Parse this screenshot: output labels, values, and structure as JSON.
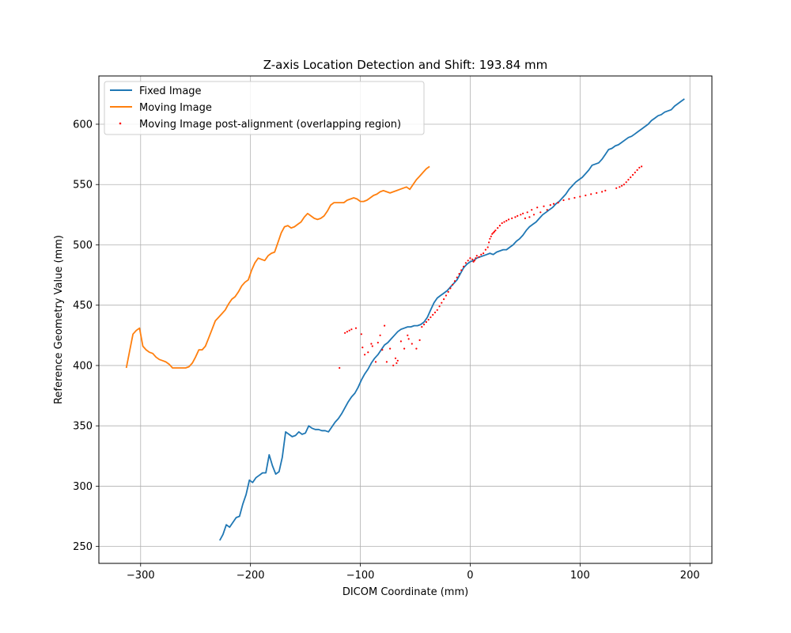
{
  "chart_data": {
    "type": "line",
    "title": "Z-axis Location Detection and Shift: 193.84 mm",
    "xlabel": "DICOM Coordinate (mm)",
    "ylabel": "Reference Geometry Value (mm)",
    "xlim": [
      -338,
      220
    ],
    "ylim": [
      236,
      640
    ],
    "xticks": [
      -300,
      -200,
      -100,
      0,
      100,
      200
    ],
    "yticks": [
      250,
      300,
      350,
      400,
      450,
      500,
      550,
      600
    ],
    "xtick_labels": [
      "−300",
      "−200",
      "−100",
      "0",
      "100",
      "200"
    ],
    "ytick_labels": [
      "250",
      "300",
      "350",
      "400",
      "450",
      "500",
      "550",
      "600"
    ],
    "grid": true,
    "legend_position": "top-left",
    "series": [
      {
        "name": "Fixed Image",
        "type": "line",
        "color": "#1f77b4",
        "x": [
          -228,
          -225,
          -222,
          -219,
          -216,
          -213,
          -210,
          -207,
          -204,
          -201,
          -198,
          -195,
          -192,
          -189,
          -186,
          -183,
          -180,
          -177,
          -174,
          -171,
          -168,
          -165,
          -162,
          -159,
          -156,
          -153,
          -150,
          -147,
          -144,
          -141,
          -138,
          -135,
          -132,
          -129,
          -126,
          -123,
          -120,
          -117,
          -114,
          -111,
          -108,
          -105,
          -102,
          -99,
          -96,
          -93,
          -90,
          -87,
          -84,
          -81,
          -78,
          -75,
          -72,
          -69,
          -66,
          -63,
          -60,
          -57,
          -54,
          -51,
          -48,
          -45,
          -42,
          -39,
          -36,
          -33,
          -30,
          -27,
          -24,
          -21,
          -18,
          -15,
          -12,
          -9,
          -6,
          -3,
          0,
          3,
          6,
          9,
          12,
          15,
          18,
          21,
          24,
          27,
          30,
          33,
          36,
          39,
          42,
          45,
          48,
          51,
          54,
          57,
          60,
          63,
          66,
          69,
          72,
          75,
          78,
          81,
          84,
          87,
          90,
          93,
          96,
          99,
          102,
          105,
          108,
          111,
          114,
          117,
          120,
          123,
          126,
          129,
          132,
          135,
          138,
          141,
          144,
          147,
          150,
          153,
          156,
          159,
          162,
          165,
          168,
          171,
          174,
          177,
          180,
          183,
          186,
          189,
          192,
          195
        ],
        "y": [
          255,
          260,
          268,
          266,
          270,
          274,
          275,
          285,
          293,
          305,
          303,
          307,
          309,
          311,
          311,
          326,
          317,
          310,
          312,
          324,
          345,
          343,
          341,
          342,
          345,
          343,
          344,
          350,
          348,
          347,
          347,
          346,
          346,
          345,
          349,
          353,
          356,
          360,
          365,
          370,
          374,
          377,
          382,
          388,
          393,
          397,
          402,
          406,
          409,
          413,
          417,
          419,
          422,
          425,
          428,
          430,
          431,
          432,
          432,
          433,
          433,
          434,
          436,
          440,
          446,
          452,
          456,
          458,
          460,
          462,
          465,
          468,
          471,
          476,
          481,
          484,
          486,
          487,
          489,
          490,
          491,
          492,
          493,
          492,
          494,
          495,
          496,
          496,
          498,
          500,
          503,
          505,
          508,
          512,
          515,
          517,
          519,
          522,
          525,
          527,
          529,
          531,
          534,
          536,
          539,
          542,
          546,
          549,
          552,
          554,
          556,
          559,
          562,
          566,
          567,
          568,
          571,
          575,
          579,
          580,
          582,
          583,
          585,
          587,
          589,
          590,
          592,
          594,
          596,
          598,
          600,
          603,
          605,
          607,
          608,
          610,
          611,
          612,
          615,
          617,
          619,
          621
        ]
      },
      {
        "name": "Moving Image",
        "type": "line",
        "color": "#ff7f0e",
        "x": [
          -313,
          -310,
          -307,
          -304,
          -301,
          -298,
          -295,
          -292,
          -289,
          -286,
          -283,
          -280,
          -277,
          -274,
          -271,
          -268,
          -265,
          -262,
          -259,
          -256,
          -253,
          -250,
          -247,
          -244,
          -241,
          -238,
          -235,
          -232,
          -229,
          -226,
          -223,
          -220,
          -217,
          -214,
          -211,
          -208,
          -205,
          -202,
          -199,
          -196,
          -193,
          -190,
          -187,
          -184,
          -181,
          -178,
          -175,
          -172,
          -169,
          -166,
          -163,
          -160,
          -157,
          -154,
          -151,
          -148,
          -145,
          -142,
          -139,
          -136,
          -133,
          -130,
          -127,
          -124,
          -121,
          -118,
          -115,
          -112,
          -109,
          -106,
          -103,
          -100,
          -97,
          -94,
          -91,
          -88,
          -85,
          -82,
          -79,
          -76,
          -73,
          -70,
          -67,
          -64,
          -61,
          -58,
          -55,
          -52,
          -49,
          -46,
          -43,
          -40,
          -37
        ],
        "y": [
          398,
          412,
          426,
          429,
          431,
          416,
          413,
          411,
          410,
          407,
          405,
          404,
          403,
          401,
          398,
          398,
          398,
          398,
          398,
          399,
          402,
          407,
          413,
          413,
          416,
          423,
          430,
          437,
          440,
          443,
          446,
          451,
          455,
          457,
          461,
          466,
          469,
          471,
          479,
          485,
          489,
          488,
          487,
          491,
          493,
          494,
          502,
          510,
          515,
          516,
          514,
          515,
          517,
          519,
          523,
          526,
          524,
          522,
          521,
          522,
          524,
          528,
          533,
          535,
          535,
          535,
          535,
          537,
          538,
          539,
          538,
          536,
          536,
          537,
          539,
          541,
          542,
          544,
          545,
          544,
          543,
          544,
          545,
          546,
          547,
          548,
          546,
          550,
          554,
          557,
          560,
          563,
          565
        ]
      },
      {
        "name": "Moving Image post-alignment (overlapping region)",
        "type": "scatter",
        "color": "#ff0000",
        "x": [
          -119,
          -114,
          -112,
          -110,
          -108,
          -104,
          -99,
          -98,
          -96,
          -93,
          -90,
          -89,
          -86,
          -84,
          -82,
          -80,
          -78,
          -76,
          -73,
          -70,
          -68,
          -67,
          -66,
          -63,
          -60,
          -57,
          -56,
          -53,
          -49,
          -46,
          -44,
          -42,
          -40,
          -38,
          -36,
          -34,
          -32,
          -30,
          -28,
          -26,
          -24,
          -22,
          -20,
          -18,
          -16,
          -14,
          -12,
          -10,
          -8,
          -6,
          -4,
          -2,
          0,
          2,
          3,
          4,
          5,
          6,
          8,
          10,
          12,
          14,
          16,
          17,
          18,
          19,
          20,
          21,
          22,
          23,
          25,
          27,
          29,
          31,
          33,
          35,
          38,
          41,
          43,
          46,
          48,
          50,
          52,
          54,
          56,
          58,
          61,
          64,
          67,
          70,
          73,
          76,
          80,
          85,
          90,
          95,
          100,
          105,
          110,
          115,
          120,
          123,
          133,
          136,
          138,
          140,
          142,
          144,
          146,
          148,
          150,
          152,
          154,
          156
        ],
        "y": [
          398,
          427,
          428,
          429,
          430,
          431,
          426,
          415,
          409,
          411,
          418,
          416,
          403,
          419,
          425,
          413,
          433,
          403,
          414,
          400,
          406,
          402,
          404,
          420,
          414,
          425,
          422,
          418,
          414,
          421,
          432,
          434,
          436,
          438,
          440,
          442,
          444,
          446,
          449,
          452,
          455,
          458,
          461,
          464,
          467,
          470,
          473,
          476,
          479,
          482,
          485,
          487,
          489,
          488,
          486,
          487,
          489,
          491,
          490,
          492,
          493,
          496,
          498,
          502,
          505,
          507,
          509,
          510,
          511,
          512,
          514,
          516,
          518,
          519,
          520,
          521,
          522,
          523,
          524,
          525,
          526,
          522,
          527,
          523,
          529,
          525,
          531,
          527,
          532,
          529,
          533,
          534,
          535,
          537,
          538,
          539,
          540,
          541,
          542,
          543,
          544,
          545,
          547,
          548,
          549,
          550,
          552,
          554,
          556,
          558,
          560,
          562,
          564,
          565
        ]
      }
    ]
  }
}
